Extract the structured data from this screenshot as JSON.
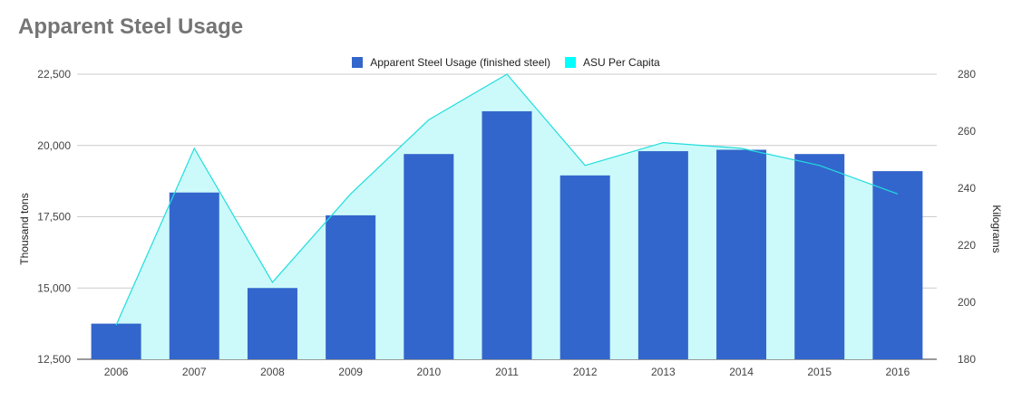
{
  "colors": {
    "bar": "#3366cc",
    "line": "#00ffff",
    "area": "#ccfafa",
    "line_stroke": "#22dddd",
    "grid": "#cccccc",
    "axis": "#333333"
  },
  "chart_data": {
    "type": "bar",
    "title": "Apparent Steel Usage",
    "categories": [
      "2006",
      "2007",
      "2008",
      "2009",
      "2010",
      "2011",
      "2012",
      "2013",
      "2014",
      "2015",
      "2016"
    ],
    "series": [
      {
        "name": "Apparent Steel Usage (finished steel)",
        "type": "bar",
        "axis": "left",
        "values": [
          13750,
          18350,
          15000,
          17550,
          19700,
          21200,
          18950,
          19800,
          19850,
          19700,
          19100
        ]
      },
      {
        "name": "ASU Per Capita",
        "type": "area",
        "axis": "right",
        "values": [
          192,
          254,
          207,
          238,
          264,
          280,
          248,
          256,
          254,
          248,
          238
        ]
      }
    ],
    "ylabel_left": "Thousand tons",
    "ylabel_right": "Kilograms",
    "ylim_left": [
      12500,
      22500
    ],
    "ylim_right": [
      180,
      280
    ],
    "yticks_left": [
      "12,500",
      "15,000",
      "17,500",
      "20,000",
      "22,500"
    ],
    "yticks_right": [
      "180",
      "200",
      "220",
      "240",
      "260",
      "280"
    ],
    "legend_position": "top-center",
    "grid": true
  }
}
